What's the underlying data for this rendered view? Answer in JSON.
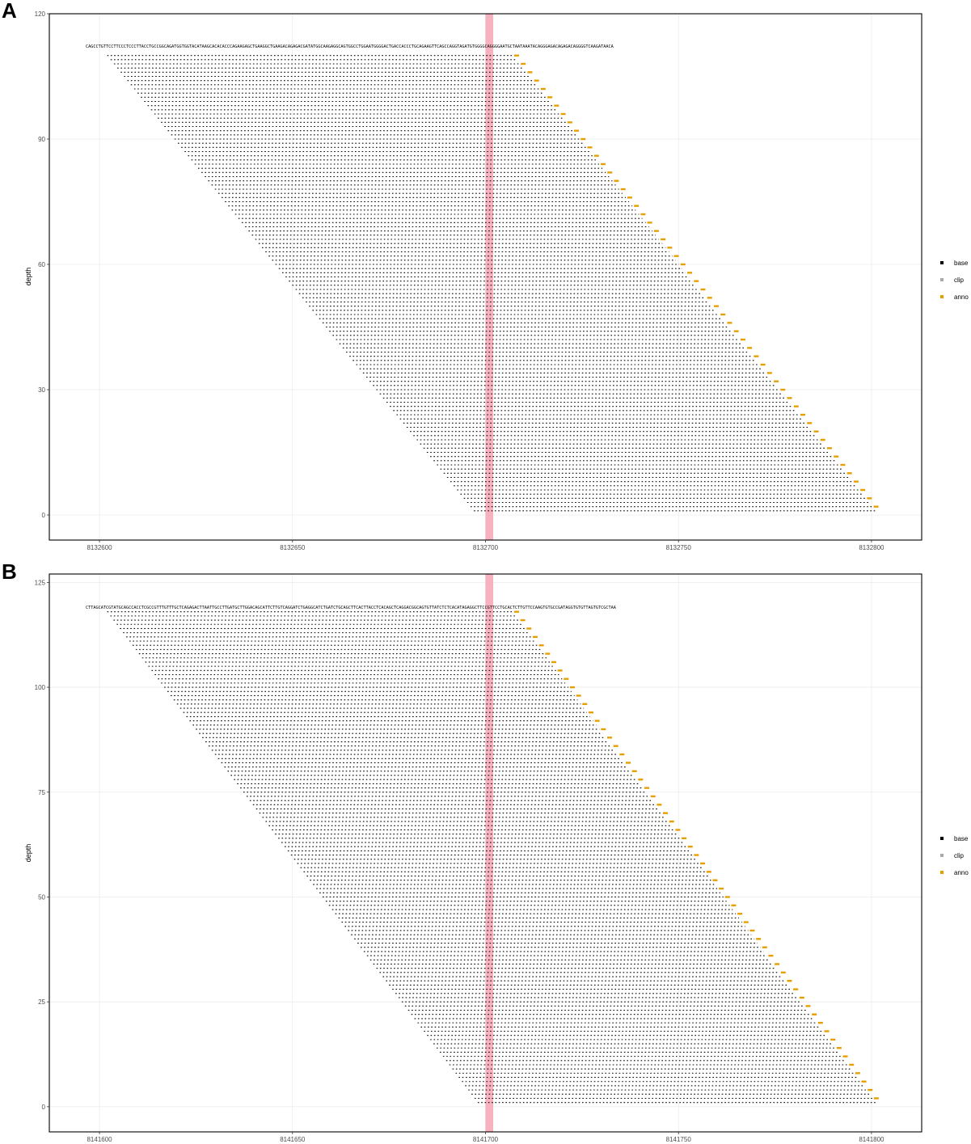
{
  "colors": {
    "base": "#000000",
    "clip": "#aaaaaa",
    "anno": "#e69f00",
    "highlight": "#f4a6b4",
    "grid": "#ebebeb"
  },
  "legend": {
    "items": [
      {
        "key": "base",
        "label": "base"
      },
      {
        "key": "clip",
        "label": "clip"
      },
      {
        "key": "anno",
        "label": "anno"
      }
    ]
  },
  "chart_data": [
    {
      "panel": "A",
      "type": "scatter",
      "ylabel": "depth",
      "xlim": [
        8132587,
        8132813
      ],
      "ylim": [
        -6,
        120
      ],
      "x_ticks": [
        8132600,
        8132650,
        8132700,
        8132750,
        8132800
      ],
      "x_tick_labels": [
        "8132600",
        "8132650",
        "8132700",
        "8132750",
        "8132800"
      ],
      "y_ticks": [
        0,
        30,
        60,
        90,
        120
      ],
      "y_tick_labels": [
        "0",
        "30",
        "60",
        "90",
        "120"
      ],
      "highlight_x": 8132701,
      "reference_sequence": "CAGCCTGTTCCTTCCCTCCCTTACCTGCCGGCAGATGGTGGTACATAAGCACACACCCAGAAGAGCTGAAGGCTGAAGACAGAGACGATATGGCAAGAGGCAGTGGCCTGGAATGGGGACTGACCACCCTGCAGAAGTTCAGCCAGGTAGATGTGGGGCAGGGGAATGCTAATAAATACAGGGAGACAGAGACAGGGGTCAAGATAACA",
      "reference_y": 113,
      "reads": {
        "top_depth": 110,
        "bottom_depth": 1,
        "top_left": 8132602,
        "bottom_left": 8132697,
        "top_right": 8132707,
        "bottom_right": 8132801
      },
      "legend_position": "right"
    },
    {
      "panel": "B",
      "type": "scatter",
      "ylabel": "depth",
      "xlim": [
        8141587,
        8141813
      ],
      "ylim": [
        -6,
        127
      ],
      "x_ticks": [
        8141600,
        8141650,
        8141700,
        8141750,
        8141800
      ],
      "x_tick_labels": [
        "8141600",
        "8141650",
        "8141700",
        "8141750",
        "8141800"
      ],
      "y_ticks": [
        0,
        25,
        50,
        75,
        100,
        125
      ],
      "y_tick_labels": [
        "0",
        "25",
        "50",
        "75",
        "100",
        "125"
      ],
      "highlight_x": 8141701,
      "reference_sequence": "CTTAGCATCGTATGCAGCCACCTCGCCGTTTGTTTGCTCAGAGACTTAATTGCCTTGATGCTTGGACAGCATTCTTGTCAGGATCTGAGGCATCTGATCTGCAGCTTCACTTACCTCACAGCTCAGGACGGCAGTGTTATCTCTCACATAGAGGCTTCCGTTCCTGCACTCTTGTTCCAAGTGTGCCGATAGGTGTGTTAGTGTCGCTAA",
      "reference_y": 120,
      "reads": {
        "top_depth": 118,
        "bottom_depth": 1,
        "top_left": 8141602,
        "bottom_left": 8141698,
        "top_right": 8141707,
        "bottom_right": 8141801
      },
      "legend_position": "right"
    }
  ]
}
